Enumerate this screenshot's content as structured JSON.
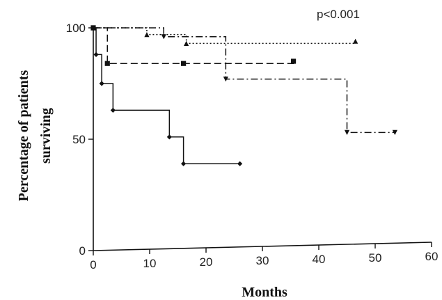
{
  "chart_data": {
    "type": "line",
    "step": true,
    "annotation": "p<0.001",
    "xlabel": "Months",
    "ylabel_lines": [
      "Percentage of patients",
      "surviving"
    ],
    "xlim": [
      0,
      60
    ],
    "ylim": [
      0,
      100
    ],
    "xticks": [
      0,
      10,
      20,
      30,
      40,
      50,
      60
    ],
    "yticks": [
      0,
      50,
      100
    ],
    "series": [
      {
        "style": "solid",
        "marker": "diamond",
        "points": [
          [
            0,
            100
          ],
          [
            0.5,
            88
          ],
          [
            1.5,
            75
          ],
          [
            3.5,
            63
          ],
          [
            13.5,
            51
          ],
          [
            16,
            39
          ],
          [
            26,
            39
          ]
        ]
      },
      {
        "style": "dashed",
        "marker": "square",
        "points": [
          [
            0,
            100
          ],
          [
            2.5,
            84
          ],
          [
            16,
            84
          ],
          [
            35.5,
            85
          ]
        ]
      },
      {
        "style": "dotted",
        "marker": "triangle-up",
        "points": [
          [
            0,
            100
          ],
          [
            9.5,
            97
          ],
          [
            16.5,
            93
          ],
          [
            46.5,
            94
          ]
        ]
      },
      {
        "style": "dashdot",
        "marker": "triangle-down",
        "points": [
          [
            0,
            100
          ],
          [
            12.5,
            96
          ],
          [
            23.5,
            77
          ],
          [
            45,
            53
          ],
          [
            53.5,
            53
          ]
        ]
      }
    ]
  }
}
